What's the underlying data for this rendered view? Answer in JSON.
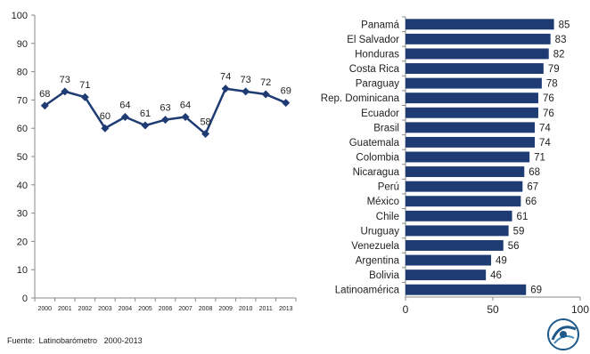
{
  "source": "Fuente:  Latinobarómetro   2000-2013",
  "colors": {
    "series": "#1F3B73",
    "bar": "#1F3B73",
    "axis": "#888888",
    "text": "#222222"
  },
  "chart_data": [
    {
      "type": "line",
      "title": "",
      "xlabel": "",
      "ylabel": "",
      "ylim": [
        0,
        100
      ],
      "yticks": [
        0,
        10,
        20,
        30,
        40,
        50,
        60,
        70,
        80,
        90,
        100
      ],
      "x": [
        "2000",
        "2001",
        "2002",
        "2003",
        "2004",
        "2005",
        "2006",
        "2007",
        "2008",
        "2009",
        "2010",
        "2011",
        "2013"
      ],
      "values": [
        68,
        73,
        71,
        60,
        64,
        61,
        63,
        64,
        58,
        74,
        73,
        72,
        69
      ],
      "grid": false,
      "data_labels": true
    },
    {
      "type": "bar",
      "orientation": "horizontal",
      "title": "",
      "xlabel": "",
      "ylabel": "",
      "xlim": [
        0,
        100
      ],
      "xticks": [
        0,
        50,
        100
      ],
      "categories": [
        "Panamá",
        "El Salvador",
        "Honduras",
        "Costa Rica",
        "Paraguay",
        "Rep. Dominicana",
        "Ecuador",
        "Brasil",
        "Guatemala",
        "Colombia",
        "Nicaragua",
        "Perú",
        "México",
        "Chile",
        "Uruguay",
        "Venezuela",
        "Argentina",
        "Bolivia",
        "Latinoamérica"
      ],
      "values": [
        85,
        83,
        82,
        79,
        78,
        76,
        76,
        74,
        74,
        71,
        68,
        67,
        66,
        61,
        59,
        56,
        49,
        46,
        69
      ],
      "grid": false,
      "data_labels": true
    }
  ]
}
